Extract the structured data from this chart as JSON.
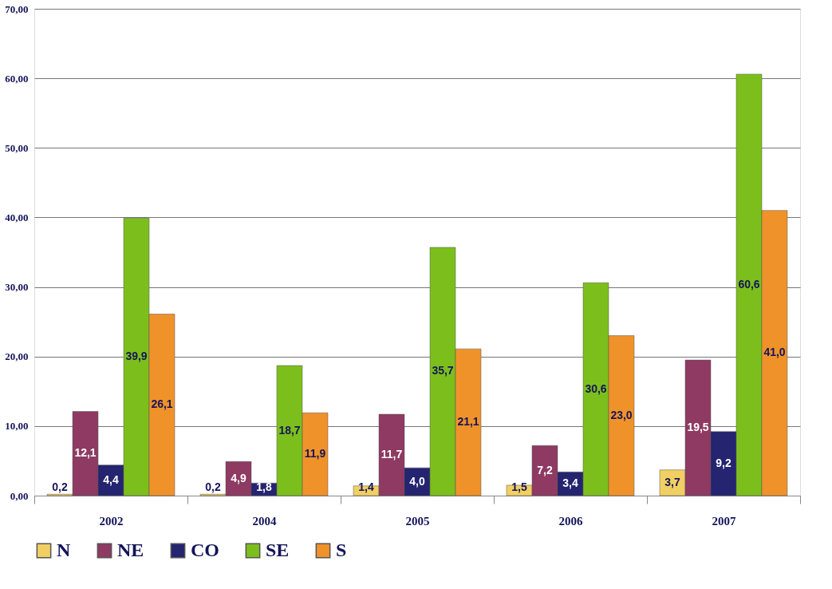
{
  "chart_data": {
    "type": "bar",
    "categories": [
      "2002",
      "2004",
      "2005",
      "2006",
      "2007"
    ],
    "series": [
      {
        "name": "N",
        "color": "#f2cf63",
        "values": [
          0.2,
          0.2,
          1.4,
          1.5,
          3.7
        ],
        "value_labels": [
          "0,2",
          "0,2",
          "1,4",
          "1,5",
          "3,7"
        ]
      },
      {
        "name": "NE",
        "color": "#8e3a62",
        "values": [
          12.1,
          4.9,
          11.7,
          7.2,
          19.5
        ],
        "value_labels": [
          "12,1",
          "4,9",
          "11,7",
          "7,2",
          "19,5"
        ]
      },
      {
        "name": "CO",
        "color": "#242470",
        "values": [
          4.4,
          1.8,
          4.0,
          3.4,
          9.2
        ],
        "value_labels": [
          "4,4",
          "1,8",
          "4,0",
          "3,4",
          "9,2"
        ]
      },
      {
        "name": "SE",
        "color": "#7cbf1c",
        "values": [
          39.9,
          18.7,
          35.7,
          30.6,
          60.6
        ],
        "value_labels": [
          "39,9",
          "18,7",
          "35,7",
          "30,6",
          "60,6"
        ]
      },
      {
        "name": "S",
        "color": "#f0922a",
        "values": [
          26.1,
          11.9,
          21.1,
          23.0,
          41.0
        ],
        "value_labels": [
          "26,1",
          "11,9",
          "21,1",
          "23,0",
          "41,0"
        ]
      }
    ],
    "ylim": [
      0,
      70
    ],
    "yticks": [
      {
        "value": 0,
        "label": "0,00"
      },
      {
        "value": 10,
        "label": "10,00"
      },
      {
        "value": 20,
        "label": "20,00"
      },
      {
        "value": 30,
        "label": "30,00"
      },
      {
        "value": 40,
        "label": "40,00"
      },
      {
        "value": 50,
        "label": "50,00"
      },
      {
        "value": 60,
        "label": "60,00"
      },
      {
        "value": 70,
        "label": "70,00"
      }
    ],
    "grid": "y",
    "legend": "bottom"
  }
}
